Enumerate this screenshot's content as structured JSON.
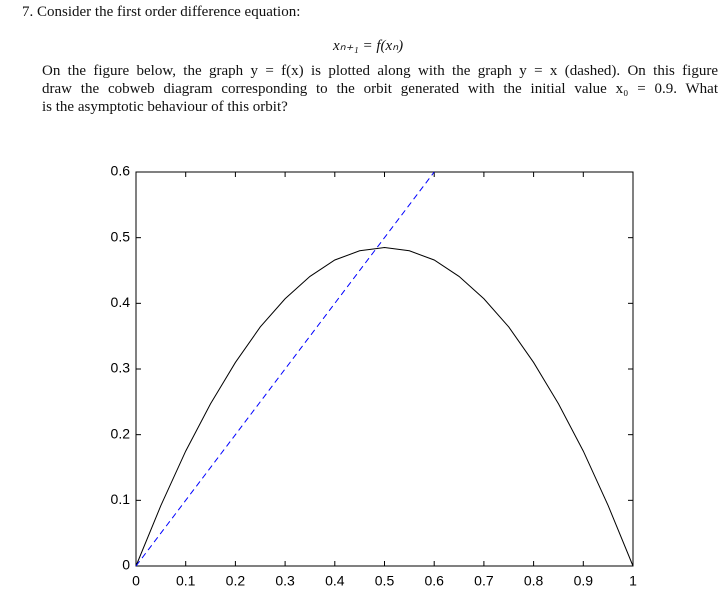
{
  "question": {
    "heading": "7. Consider the first order difference equation:",
    "equation": "xₙ₊₁ = f(xₙ)",
    "lines": [
      "On the figure below, the graph y = f(x) is plotted along with the graph y = x (dashed). On this figure",
      "draw the cobweb diagram corresponding to the orbit generated with the initial value x₀ = 0.9. What",
      "is the asymptotic behaviour of this orbit?"
    ]
  },
  "chart_data": {
    "type": "line",
    "series": [
      {
        "color": "#000000",
        "style": "solid",
        "x": [
          0,
          0.05,
          0.1,
          0.15,
          0.2,
          0.25,
          0.3,
          0.35,
          0.4,
          0.45,
          0.5,
          0.55,
          0.6,
          0.65,
          0.7,
          0.75,
          0.8,
          0.85,
          0.9,
          0.95,
          1
        ],
        "values": [
          0,
          0.092,
          0.175,
          0.247,
          0.31,
          0.364,
          0.407,
          0.441,
          0.466,
          0.48,
          0.485,
          0.48,
          0.466,
          0.441,
          0.407,
          0.364,
          0.31,
          0.247,
          0.175,
          0.092,
          0
        ]
      },
      {
        "color": "#0000ff",
        "style": "dashed",
        "x": [
          0,
          0.6
        ],
        "values": [
          0,
          0.6
        ]
      }
    ],
    "xlim": [
      0,
      1
    ],
    "ylim": [
      0,
      0.6
    ],
    "xticks": [
      0,
      0.1,
      0.2,
      0.3,
      0.4,
      0.5,
      0.6,
      0.7,
      0.8,
      0.9,
      1
    ],
    "yticks": [
      0,
      0.1,
      0.2,
      0.3,
      0.4,
      0.5,
      0.6
    ]
  }
}
